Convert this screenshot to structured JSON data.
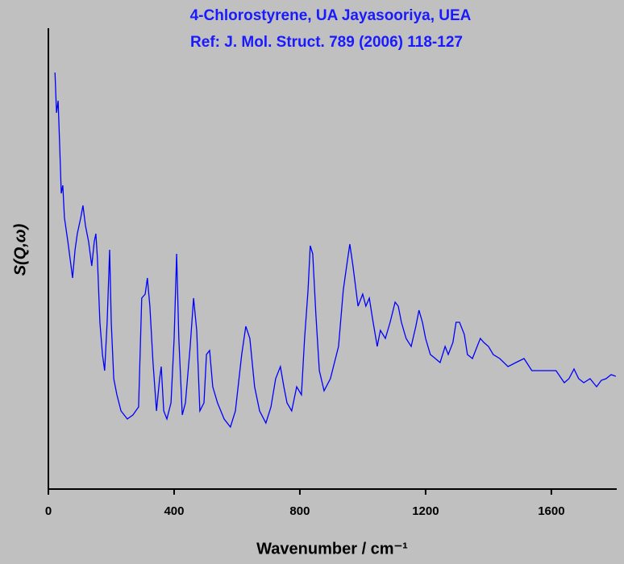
{
  "chart_data": {
    "type": "line",
    "title": "4-Chlorostyrene, UA Jayasooriya, UEA",
    "subtitle": "Ref: J. Mol. Struct. 789 (2006) 118-127",
    "xlabel": "Wavenumber / cm⁻¹",
    "ylabel": "S(Q,ω)",
    "xlim": [
      0,
      1808
    ],
    "ylim": [
      0,
      572
    ],
    "xticks": [
      0,
      400,
      800,
      1200,
      1600
    ],
    "title_color": "#1a1aff",
    "series": [
      {
        "color": "#0000ff",
        "x": [
          21,
          26,
          31,
          36,
          41,
          46,
          51,
          62,
          72,
          77,
          85,
          92,
          103,
          110,
          118,
          128,
          138,
          146,
          151,
          156,
          164,
          172,
          179,
          187,
          195,
          200,
          208,
          218,
          231,
          251,
          269,
          287,
          297,
          308,
          315,
          323,
          333,
          344,
          354,
          359,
          367,
          377,
          390,
          400,
          408,
          415,
          426,
          436,
          451,
          462,
          472,
          482,
          495,
          503,
          513,
          523,
          538,
          559,
          579,
          595,
          615,
          628,
          641,
          656,
          672,
          692,
          708,
          723,
          738,
          749,
          759,
          774,
          790,
          805,
          815,
          826,
          833,
          841,
          851,
          862,
          877,
          897,
          923,
          938,
          949,
          959,
          969,
          985,
          1000,
          1010,
          1021,
          1031,
          1046,
          1056,
          1072,
          1087,
          1103,
          1113,
          1123,
          1138,
          1154,
          1169,
          1179,
          1190,
          1200,
          1215,
          1231,
          1246,
          1262,
          1272,
          1287,
          1297,
          1308,
          1323,
          1333,
          1349,
          1359,
          1374,
          1385,
          1400,
          1415,
          1436,
          1462,
          1487,
          1513,
          1538,
          1564,
          1615,
          1641,
          1656,
          1672,
          1687,
          1703,
          1723,
          1744,
          1759,
          1774,
          1790,
          1805
        ],
        "values": [
          517,
          467,
          482,
          427,
          367,
          377,
          337,
          307,
          277,
          262,
          297,
          317,
          337,
          352,
          327,
          307,
          277,
          307,
          317,
          287,
          207,
          167,
          147,
          207,
          297,
          207,
          137,
          117,
          97,
          87,
          92,
          102,
          237,
          242,
          262,
          227,
          157,
          97,
          137,
          152,
          97,
          87,
          107,
          187,
          292,
          187,
          92,
          107,
          177,
          237,
          197,
          97,
          107,
          167,
          172,
          127,
          107,
          87,
          77,
          97,
          167,
          202,
          187,
          127,
          97,
          82,
          102,
          137,
          152,
          127,
          107,
          97,
          127,
          117,
          187,
          247,
          302,
          292,
          217,
          147,
          122,
          137,
          177,
          247,
          277,
          304,
          277,
          227,
          242,
          227,
          237,
          212,
          177,
          197,
          187,
          207,
          232,
          227,
          207,
          187,
          177,
          202,
          222,
          207,
          187,
          167,
          162,
          157,
          177,
          167,
          182,
          207,
          207,
          192,
          167,
          162,
          172,
          187,
          182,
          177,
          167,
          162,
          152,
          157,
          162,
          147,
          147,
          147,
          132,
          137,
          149,
          137,
          132,
          137,
          127,
          135,
          137,
          142,
          140
        ]
      }
    ]
  }
}
